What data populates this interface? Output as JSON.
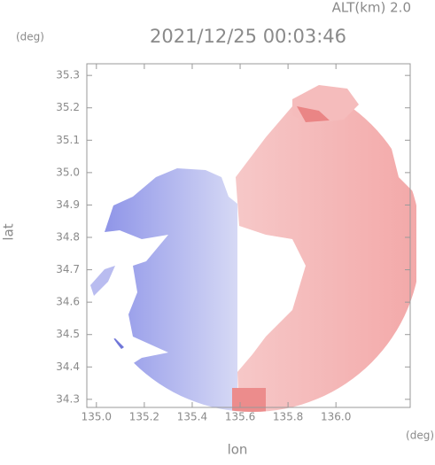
{
  "chart_data": {
    "type": "map",
    "title": "2021/12/25 00:03:46",
    "subtitle": "ALT(km) 2.0",
    "x_label": "lon",
    "y_label": "lat",
    "x_unit": "(deg)",
    "y_unit": "(deg)",
    "xlim": [
      134.96,
      136.31
    ],
    "ylim": [
      34.275,
      35.336
    ],
    "xticks": [
      {
        "value": 135,
        "label": "135.0"
      },
      135.2,
      135.4,
      135.6,
      135.8,
      {
        "value": 136,
        "label": "136.0"
      }
    ],
    "yticks": [
      35.3,
      35.2,
      35.1,
      {
        "value": 35,
        "label": "35.0"
      },
      34.9,
      34.8,
      34.7,
      34.6,
      34.5,
      34.4,
      34.3
    ]
  }
}
